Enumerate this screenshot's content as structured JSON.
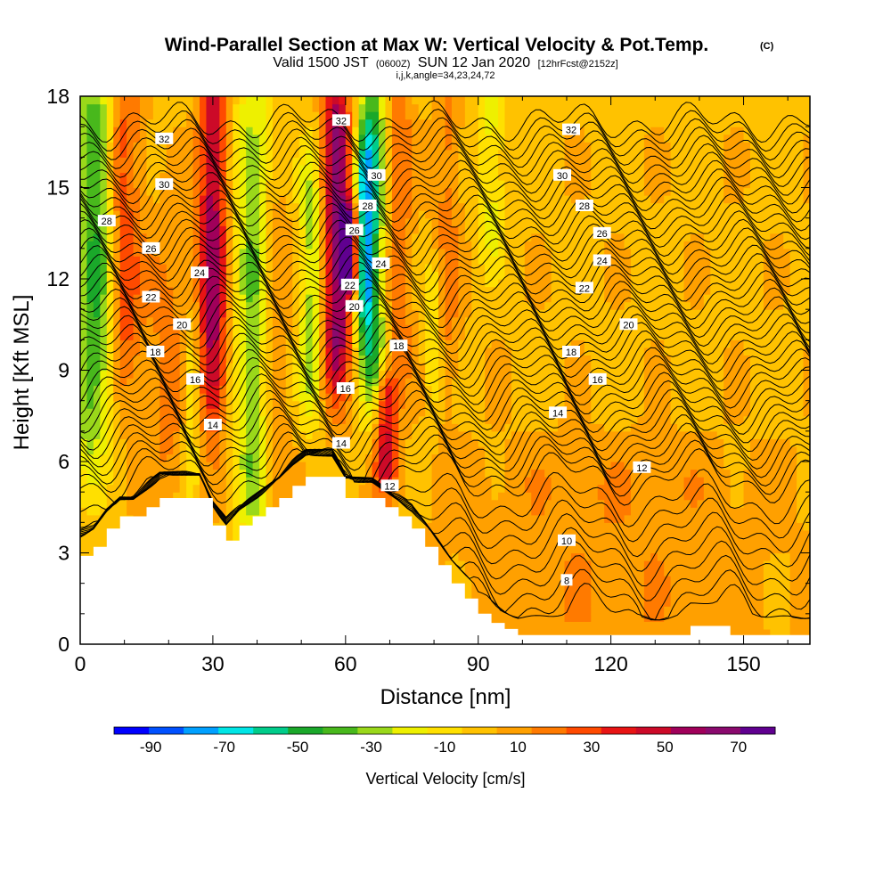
{
  "chart_data": {
    "type": "heatmap",
    "title": "Wind-Parallel Section at Max W: Vertical Velocity & Pot.Temp.",
    "title_mark": "(C)",
    "subtitle_parts": [
      "Valid 1500 JST",
      "(0600Z)",
      "SUN 12 Jan 2020",
      "[12hrFcst@2152z]"
    ],
    "info_line": "i,j,k,angle=34,23,24,72",
    "xlabel": "Distance [nm]",
    "ylabel": "Height [Kft MSL]",
    "xlim": [
      0,
      165
    ],
    "ylim": [
      0,
      18
    ],
    "x_ticks": [
      0,
      30,
      60,
      90,
      120,
      150
    ],
    "y_ticks": [
      0,
      3,
      6,
      9,
      12,
      15,
      18
    ],
    "colorbar": {
      "title": "Vertical Velocity [cm/s]",
      "range": [
        -100,
        80
      ],
      "labels": [
        -90,
        -70,
        -50,
        -30,
        -10,
        10,
        30,
        50,
        70
      ],
      "colors": [
        "#0000ff",
        "#0050ff",
        "#00a0ff",
        "#00e6e6",
        "#00cc8a",
        "#1aa82a",
        "#48b81c",
        "#9ad81a",
        "#eef000",
        "#ffe000",
        "#ffc200",
        "#ffa000",
        "#ff7a00",
        "#ff4a00",
        "#e81414",
        "#cc0a28",
        "#a0005a",
        "#8a0a6e",
        "#600090"
      ]
    },
    "terrain_kft": {
      "x": [
        0,
        3,
        6,
        9,
        12,
        15,
        18,
        21,
        24,
        27,
        30,
        33,
        36,
        39,
        42,
        45,
        48,
        51,
        54,
        57,
        60,
        63,
        66,
        69,
        72,
        75,
        78,
        81,
        84,
        87,
        90,
        93,
        96,
        99,
        102,
        105,
        108,
        111,
        114,
        117,
        120,
        123,
        126,
        129,
        132,
        135,
        138,
        141,
        144,
        147,
        150,
        153,
        156,
        159,
        162,
        165
      ],
      "h": [
        2.9,
        3.2,
        3.8,
        4.2,
        4.2,
        4.5,
        4.8,
        4.8,
        4.8,
        4.8,
        3.9,
        3.4,
        3.9,
        4.2,
        4.5,
        4.8,
        5.2,
        5.5,
        5.5,
        5.5,
        4.8,
        4.8,
        4.8,
        4.5,
        4.2,
        3.8,
        3.2,
        2.6,
        2.0,
        1.5,
        1.0,
        0.7,
        0.5,
        0.3,
        0.3,
        0.3,
        0.3,
        0.3,
        0.3,
        0.3,
        0.3,
        0.3,
        0.3,
        0.3,
        0.3,
        0.3,
        0.6,
        0.6,
        0.6,
        0.3,
        0.3,
        0.3,
        0.3,
        0.3,
        0.3,
        0.3
      ]
    },
    "vertical_velocity_features": [
      {
        "sign": "down",
        "x_center": 2,
        "width_nm": 4,
        "z_bottom": 6.5,
        "z_top": 18,
        "peak_cms": -35
      },
      {
        "sign": "down",
        "x_center": 5,
        "width_nm": 3,
        "z_bottom": 8.5,
        "z_top": 18,
        "peak_cms": -20
      },
      {
        "sign": "up",
        "x_center": 10,
        "width_nm": 4,
        "z_bottom": 9,
        "z_top": 18,
        "peak_cms": 25
      },
      {
        "sign": "up",
        "x_center": 20,
        "width_nm": 5,
        "z_bottom": 5.5,
        "z_top": 13,
        "peak_cms": 15
      },
      {
        "sign": "down",
        "x_center": 25,
        "width_nm": 2,
        "z_bottom": 5.5,
        "z_top": 10,
        "peak_cms": -20
      },
      {
        "sign": "up",
        "x_center": 30,
        "width_nm": 3,
        "z_bottom": 8,
        "z_top": 18,
        "peak_cms": 55
      },
      {
        "sign": "down",
        "x_center": 39,
        "width_nm": 4,
        "z_bottom": 4.2,
        "z_top": 17.5,
        "peak_cms": -35
      },
      {
        "sign": "up",
        "x_center": 44,
        "width_nm": 3,
        "z_bottom": 5,
        "z_top": 14,
        "peak_cms": 15
      },
      {
        "sign": "down",
        "x_center": 52,
        "width_nm": 2.5,
        "z_bottom": 8,
        "z_top": 15.5,
        "peak_cms": -30
      },
      {
        "sign": "up",
        "x_center": 58,
        "width_nm": 3,
        "z_bottom": 9,
        "z_top": 18,
        "peak_cms": 60
      },
      {
        "sign": "up",
        "x_center": 61,
        "width_nm": 2,
        "z_bottom": 12,
        "z_top": 14,
        "peak_cms": 70
      },
      {
        "sign": "down",
        "x_center": 66,
        "width_nm": 3,
        "z_bottom": 8.5,
        "z_top": 18,
        "peak_cms": -55
      },
      {
        "sign": "down",
        "x_center": 64,
        "width_nm": 2,
        "z_bottom": 11,
        "z_top": 16,
        "peak_cms": -40
      },
      {
        "sign": "up",
        "x_center": 69,
        "width_nm": 2.5,
        "z_bottom": 5.5,
        "z_top": 8.5,
        "peak_cms": 45
      },
      {
        "sign": "up",
        "x_center": 72,
        "width_nm": 3,
        "z_bottom": 9,
        "z_top": 18,
        "peak_cms": 20
      },
      {
        "sign": "down",
        "x_center": 80,
        "width_nm": 2,
        "z_bottom": 8.5,
        "z_top": 12,
        "peak_cms": -20
      },
      {
        "sign": "up",
        "x_center": 83,
        "width_nm": 3,
        "z_bottom": 9,
        "z_top": 18,
        "peak_cms": 15
      },
      {
        "sign": "down",
        "x_center": 93,
        "width_nm": 3,
        "z_bottom": 13,
        "z_top": 18,
        "peak_cms": -20
      },
      {
        "sign": "up",
        "x_center": 120,
        "width_nm": 40,
        "z_bottom": 0.3,
        "z_top": 6,
        "peak_cms": 10
      }
    ],
    "theta_contours": [
      {
        "value": 8,
        "label_positions": [
          [
            110,
            2.1
          ]
        ]
      },
      {
        "value": 10,
        "label_positions": [
          [
            110,
            3.4
          ]
        ]
      },
      {
        "value": 12,
        "label_positions": [
          [
            70,
            5.2
          ],
          [
            127,
            5.8
          ]
        ]
      },
      {
        "value": 14,
        "label_positions": [
          [
            30,
            7.2
          ],
          [
            59,
            6.6
          ],
          [
            108,
            7.6
          ]
        ]
      },
      {
        "value": 16,
        "label_positions": [
          [
            26,
            8.7
          ],
          [
            60,
            8.4
          ],
          [
            117,
            8.7
          ]
        ]
      },
      {
        "value": 18,
        "label_positions": [
          [
            17,
            9.6
          ],
          [
            72,
            9.8
          ],
          [
            111,
            9.6
          ]
        ]
      },
      {
        "value": 20,
        "label_positions": [
          [
            23,
            10.5
          ],
          [
            62,
            11.1
          ],
          [
            124,
            10.5
          ]
        ]
      },
      {
        "value": 22,
        "label_positions": [
          [
            16,
            11.4
          ],
          [
            61,
            11.8
          ],
          [
            114,
            11.7
          ]
        ]
      },
      {
        "value": 24,
        "label_positions": [
          [
            27,
            12.2
          ],
          [
            68,
            12.5
          ],
          [
            118,
            12.6
          ]
        ]
      },
      {
        "value": 26,
        "label_positions": [
          [
            16,
            13.0
          ],
          [
            62,
            13.6
          ],
          [
            118,
            13.5
          ]
        ]
      },
      {
        "value": 28,
        "label_positions": [
          [
            6,
            13.9
          ],
          [
            65,
            14.4
          ],
          [
            114,
            14.4
          ]
        ]
      },
      {
        "value": 30,
        "label_positions": [
          [
            19,
            15.1
          ],
          [
            67,
            15.4
          ],
          [
            109,
            15.4
          ]
        ]
      },
      {
        "value": 32,
        "label_positions": [
          [
            19,
            16.6
          ],
          [
            59,
            17.2
          ],
          [
            111,
            16.9
          ]
        ]
      }
    ]
  }
}
